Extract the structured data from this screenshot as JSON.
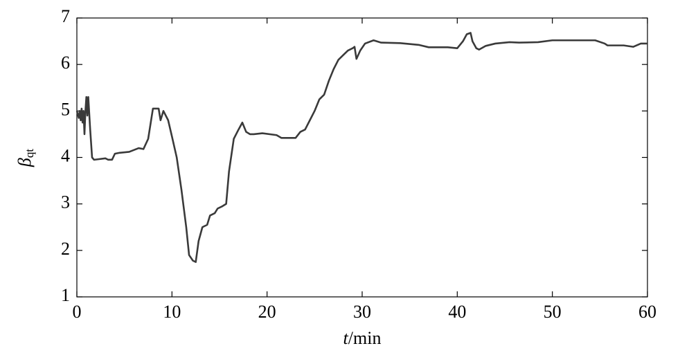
{
  "chart_data": {
    "type": "line",
    "xlabel": {
      "var": "t",
      "unit": "/min"
    },
    "ylabel": {
      "main": "β",
      "sub": "qt"
    },
    "xlim": [
      0,
      60
    ],
    "xticks": [
      0,
      10,
      20,
      30,
      40,
      50,
      60
    ],
    "ylim": [
      1,
      7
    ],
    "yticks": [
      1,
      2,
      3,
      4,
      5,
      6,
      7
    ],
    "series": [
      {
        "color": "#3a3a3a",
        "x": [
          0,
          0.2,
          0.3,
          0.4,
          0.5,
          0.6,
          0.7,
          0.8,
          0.9,
          1.0,
          1.1,
          1.2,
          1.4,
          1.6,
          1.8,
          3.0,
          3.3,
          3.7,
          4.0,
          4.5,
          5.5,
          6.5,
          7.0,
          7.5,
          8.0,
          8.6,
          8.8,
          9.1,
          9.6,
          10.0,
          10.5,
          11.0,
          11.5,
          11.8,
          12.2,
          12.5,
          12.8,
          13.2,
          13.7,
          14.0,
          14.5,
          14.8,
          15.3,
          15.7,
          16.0,
          16.5,
          17.0,
          17.4,
          17.8,
          18.2,
          18.6,
          19.5,
          21.0,
          21.5,
          22.5,
          23.0,
          23.5,
          24.0,
          24.5,
          25.0,
          25.5,
          26.0,
          26.5,
          27.0,
          27.5,
          28.0,
          28.5,
          29.0,
          29.2,
          29.4,
          29.8,
          30.3,
          31.2,
          32.0,
          34.0,
          36.0,
          37.0,
          39.0,
          40.0,
          40.6,
          41.0,
          41.4,
          41.6,
          42.0,
          42.3,
          43.0,
          44.0,
          45.5,
          46.5,
          48.5,
          50.0,
          52.0,
          54.5,
          55.5,
          55.8,
          57.5,
          58.5,
          59.3,
          60.0
        ],
        "values": [
          5.0,
          4.85,
          5.0,
          4.8,
          5.05,
          4.75,
          5.0,
          4.5,
          5.0,
          5.3,
          4.9,
          5.3,
          4.6,
          4.0,
          3.95,
          3.98,
          3.95,
          3.95,
          4.08,
          4.1,
          4.12,
          4.2,
          4.18,
          4.4,
          5.05,
          5.05,
          4.8,
          5.0,
          4.8,
          4.45,
          4.0,
          3.3,
          2.5,
          1.9,
          1.78,
          1.75,
          2.2,
          2.5,
          2.55,
          2.75,
          2.8,
          2.9,
          2.95,
          3.0,
          3.7,
          4.4,
          4.6,
          4.75,
          4.55,
          4.5,
          4.5,
          4.52,
          4.48,
          4.42,
          4.42,
          4.42,
          4.55,
          4.6,
          4.8,
          5.0,
          5.25,
          5.35,
          5.65,
          5.9,
          6.1,
          6.2,
          6.3,
          6.35,
          6.38,
          6.12,
          6.3,
          6.45,
          6.52,
          6.47,
          6.46,
          6.42,
          6.37,
          6.37,
          6.35,
          6.5,
          6.65,
          6.68,
          6.5,
          6.35,
          6.32,
          6.4,
          6.45,
          6.48,
          6.47,
          6.48,
          6.52,
          6.52,
          6.52,
          6.45,
          6.41,
          6.41,
          6.38,
          6.45,
          6.45
        ]
      }
    ]
  }
}
